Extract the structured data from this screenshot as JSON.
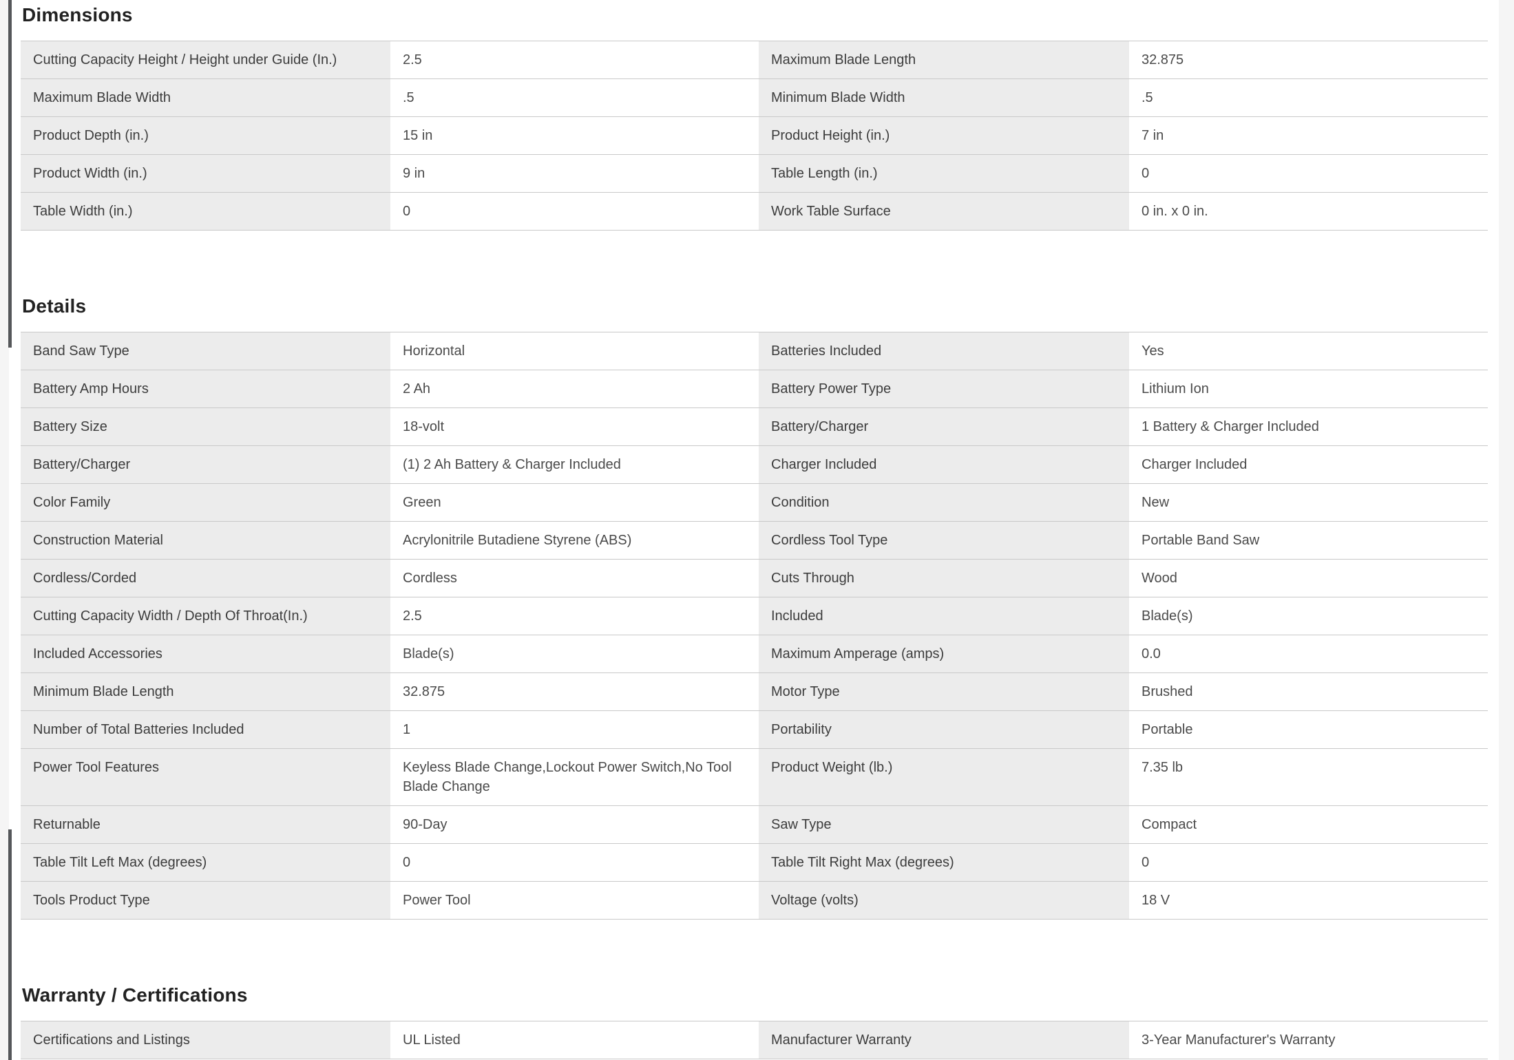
{
  "colors": {
    "page_gutter": "#f5f5f5",
    "page_background": "#ffffff",
    "label_cell_background": "#ececec",
    "row_border": "#c9c9c9",
    "heading_text": "#222222",
    "label_text": "#3c3c3c",
    "value_text": "#4a4a4a",
    "edge_bar": "#55575a"
  },
  "sections": [
    {
      "title": "Dimensions",
      "rows": [
        [
          "Cutting Capacity Height / Height under Guide (In.)",
          "2.5",
          "Maximum Blade Length",
          "32.875"
        ],
        [
          "Maximum Blade Width",
          ".5",
          "Minimum Blade Width",
          ".5"
        ],
        [
          "Product Depth (in.)",
          "15 in",
          "Product Height (in.)",
          "7 in"
        ],
        [
          "Product Width (in.)",
          "9 in",
          "Table Length (in.)",
          "0"
        ],
        [
          "Table Width (in.)",
          "0",
          "Work Table Surface",
          "0 in. x 0 in."
        ]
      ]
    },
    {
      "title": "Details",
      "rows": [
        [
          "Band Saw Type",
          "Horizontal",
          "Batteries Included",
          "Yes"
        ],
        [
          "Battery Amp Hours",
          "2 Ah",
          "Battery Power Type",
          "Lithium Ion"
        ],
        [
          "Battery Size",
          "18-volt",
          "Battery/Charger",
          "1 Battery & Charger Included"
        ],
        [
          "Battery/Charger",
          "(1) 2 Ah Battery & Charger Included",
          "Charger Included",
          "Charger Included"
        ],
        [
          "Color Family",
          "Green",
          "Condition",
          "New"
        ],
        [
          "Construction Material",
          "Acrylonitrile Butadiene Styrene (ABS)",
          "Cordless Tool Type",
          "Portable Band Saw"
        ],
        [
          "Cordless/Corded",
          "Cordless",
          "Cuts Through",
          "Wood"
        ],
        [
          "Cutting Capacity Width / Depth Of Throat(In.)",
          "2.5",
          "Included",
          "Blade(s)"
        ],
        [
          "Included Accessories",
          "Blade(s)",
          "Maximum Amperage (amps)",
          "0.0"
        ],
        [
          "Minimum Blade Length",
          "32.875",
          "Motor Type",
          "Brushed"
        ],
        [
          "Number of Total Batteries Included",
          "1",
          "Portability",
          "Portable"
        ],
        [
          "Power Tool Features",
          "Keyless Blade Change,Lockout Power Switch,No Tool Blade Change",
          "Product Weight (lb.)",
          "7.35 lb"
        ],
        [
          "Returnable",
          "90-Day",
          "Saw Type",
          "Compact"
        ],
        [
          "Table Tilt Left Max (degrees)",
          "0",
          "Table Tilt Right Max (degrees)",
          "0"
        ],
        [
          "Tools Product Type",
          "Power Tool",
          "Voltage (volts)",
          "18 V"
        ]
      ]
    },
    {
      "title": "Warranty / Certifications",
      "rows": [
        [
          "Certifications and Listings",
          "UL Listed",
          "Manufacturer Warranty",
          "3-Year Manufacturer's Warranty"
        ]
      ]
    }
  ]
}
